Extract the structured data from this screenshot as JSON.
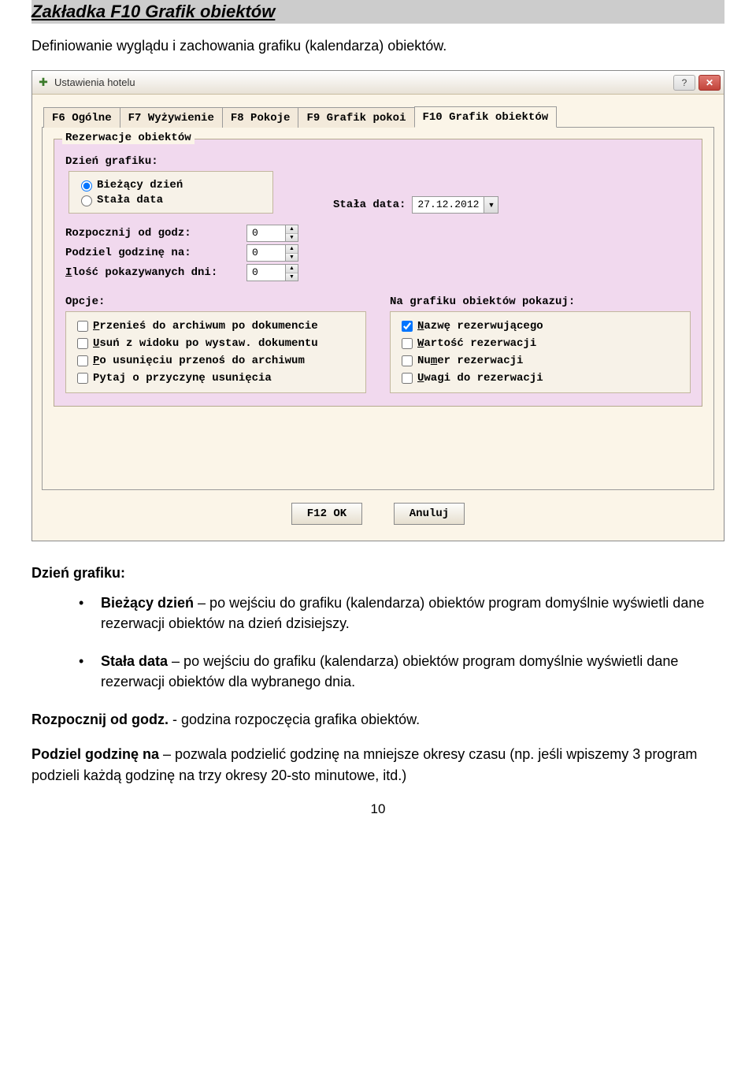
{
  "section_heading": "Zakładka F10 Grafik obiektów",
  "intro": "Definiowanie wyglądu i zachowania grafiku (kalendarza) obiektów.",
  "window": {
    "title": "Ustawienia hotelu",
    "tabs": {
      "t0": "F6 Ogólne",
      "t1": "F7 Wyżywienie",
      "t2": "F8 Pokoje",
      "t3": "F9 Grafik pokoi",
      "t4": "F10 Grafik obiektów"
    },
    "group_legend": "Rezerwacje obiektów",
    "day_label": "Dzień grafiku:",
    "radio_current": "Bieżący dzień",
    "radio_fixed": "Stała data",
    "fixed_date_label": "Stała data:",
    "fixed_date_value": "27.12.2012",
    "spin_start_label": "Rozpocznij od godz:",
    "spin_start_value": "0",
    "spin_div_label": "Podziel godzinę na:",
    "spin_div_value": "0",
    "spin_days_label_pre": "I",
    "spin_days_label_post": "lość pokazywanych dni:",
    "spin_days_value": "0",
    "options_label": "Opcje:",
    "opt1_pre": "P",
    "opt1_post": "rzenieś do archiwum po dokumencie",
    "opt2_pre": "U",
    "opt2_post": "suń z widoku po wystaw. dokumentu",
    "opt3_pre": "P",
    "opt3_post": "o usunięciu przenoś do archiwum",
    "opt4": "Pytaj o przyczynę usunięcia",
    "show_label": "Na grafiku obiektów pokazuj:",
    "show1_pre": "N",
    "show1_post": "azwę rezerwującego",
    "show2_pre": "W",
    "show2_post": "artość rezerwacji",
    "show3_pre": "Nu",
    "show3_u": "m",
    "show3_post": "er rezerwacji",
    "show4_pre": "U",
    "show4_post": "wagi do rezerwacji",
    "ok_btn": "F12 OK",
    "cancel_btn": "Anuluj"
  },
  "desc": {
    "head1": "Dzień grafiku:",
    "b1_label": "Bieżący dzień",
    "b1_rest": " – po wejściu do grafiku (kalendarza) obiektów program domyślnie wyświetli dane rezerwacji obiektów na dzień dzisiejszy.",
    "b2_label": "Stała data",
    "b2_rest": " – po wejściu do grafiku (kalendarza) obiektów program domyślnie wyświetli dane rezerwacji obiektów dla wybranego dnia.",
    "p1_label": "Rozpocznij od godz.",
    "p1_rest": " - godzina rozpoczęcia grafika obiektów.",
    "p2_label": "Podziel godzinę na",
    "p2_rest": " – pozwala podzielić godzinę na mniejsze okresy czasu (np. jeśli wpiszemy 3 program podzieli każdą godzinę na trzy okresy 20-sto minutowe, itd.)"
  },
  "page_number": "10"
}
